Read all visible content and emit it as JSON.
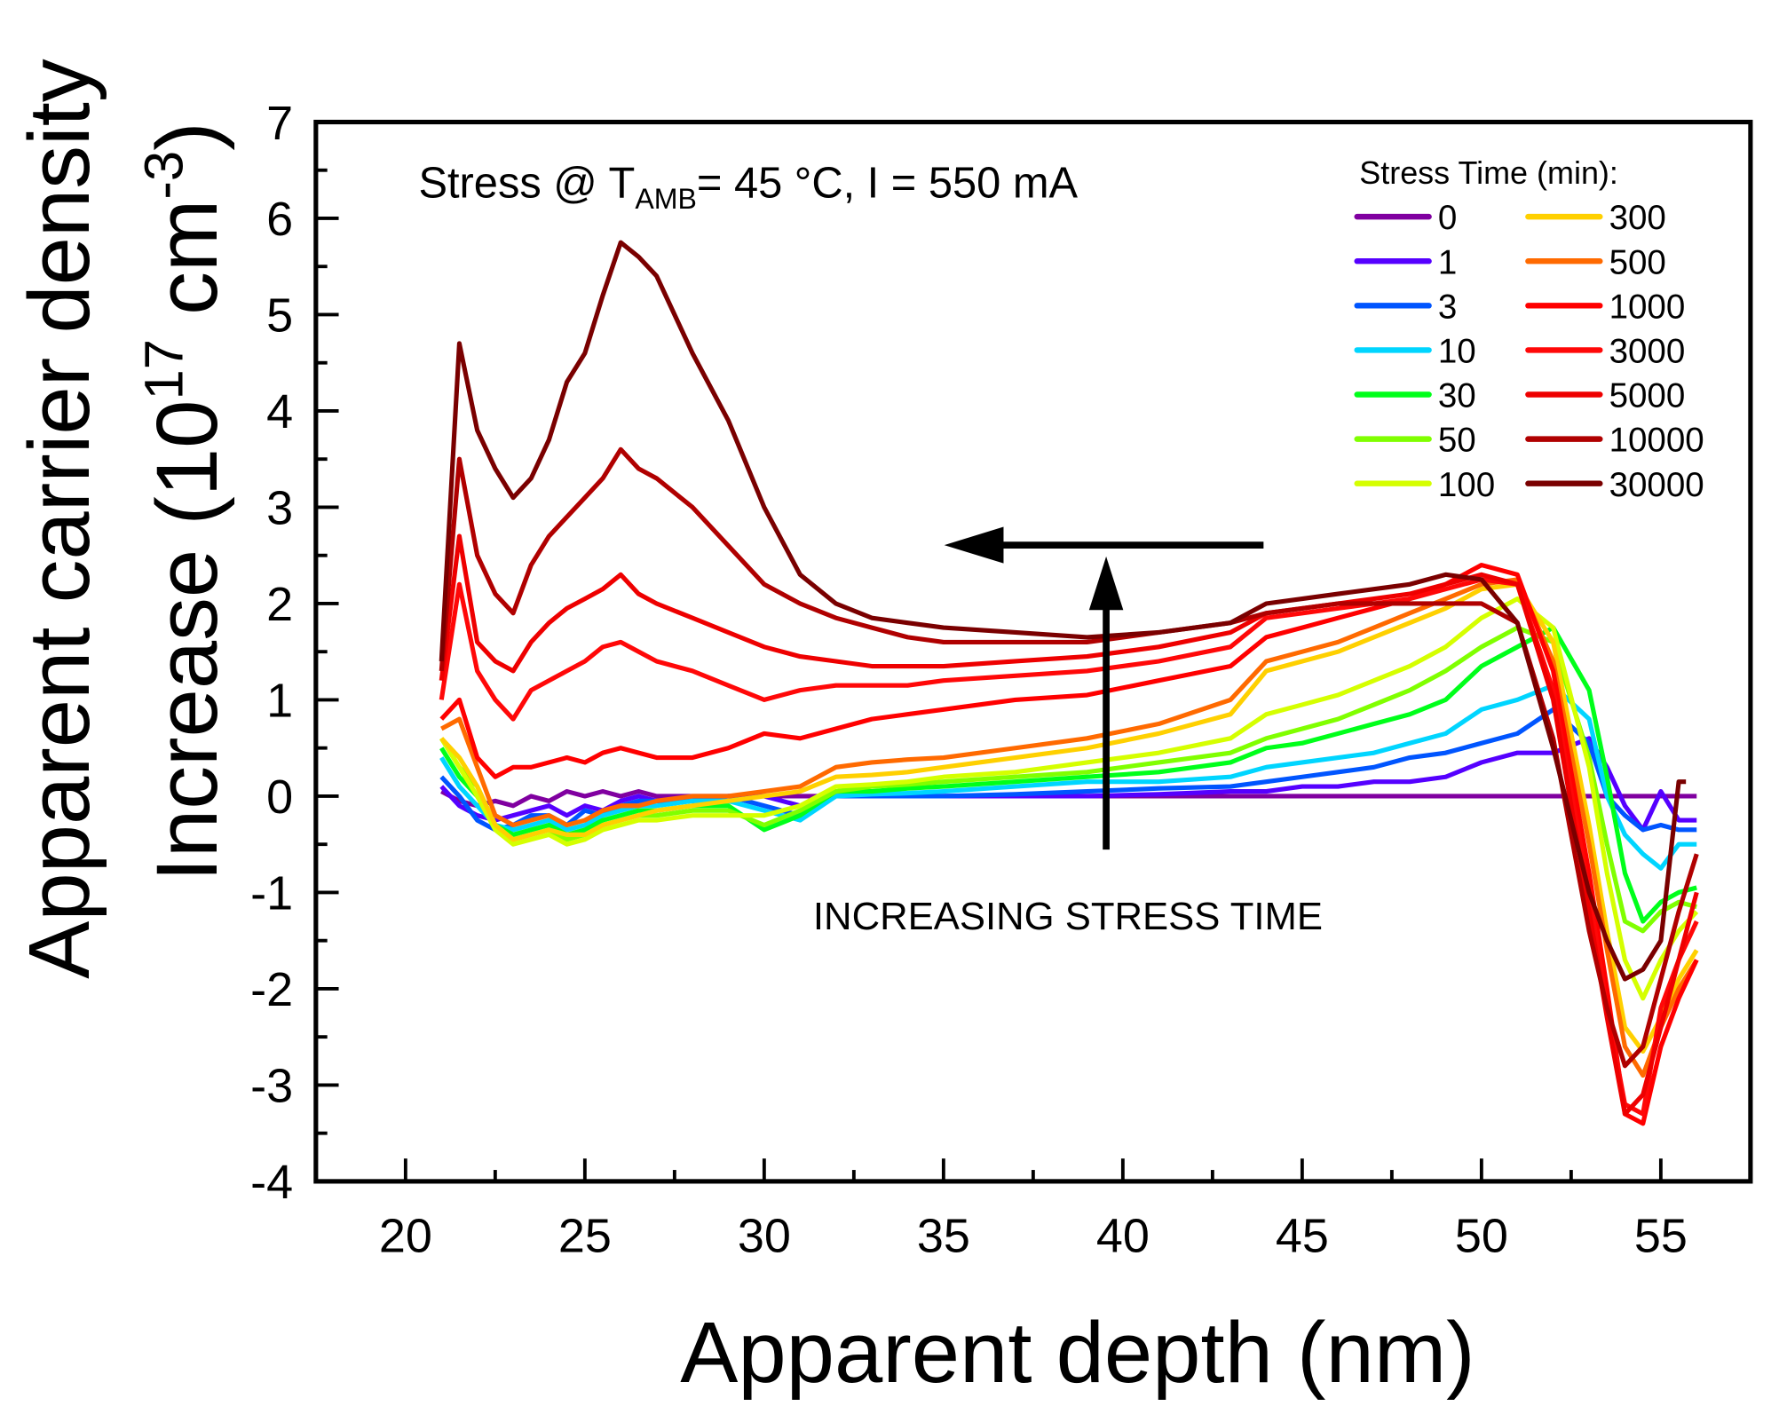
{
  "chart_data": {
    "type": "line",
    "title": "",
    "annotation": {
      "prefix": "Stress @ T",
      "sub": "AMB",
      "suffix": "= 45 °C, I = 550 mA"
    },
    "arrow_label": "INCREASING STRESS TIME",
    "xlabel": "Apparent depth (nm)",
    "ylabel_line1": "Apparent carrier density",
    "ylabel_line2": {
      "prefix": "Increase (10",
      "sup1": "17",
      "mid": " cm",
      "sup2": "-3",
      "suffix": ")"
    },
    "xlim": [
      17.5,
      57.5
    ],
    "ylim": [
      -4,
      7
    ],
    "xticks": [
      "20",
      "25",
      "30",
      "35",
      "40",
      "45",
      "50",
      "55"
    ],
    "yticks": [
      "-4",
      "-3",
      "-2",
      "-1",
      "0",
      "1",
      "2",
      "3",
      "4",
      "5",
      "6",
      "7"
    ],
    "legend_title": "Stress Time (min):",
    "legend_position": "top-right",
    "x": [
      21,
      21.5,
      22,
      22.5,
      23,
      23.5,
      24,
      24.5,
      25,
      25.5,
      26,
      26.5,
      27,
      28,
      29,
      30,
      31,
      32,
      33,
      34,
      35,
      37,
      39,
      41,
      43,
      44,
      45,
      46,
      47,
      48,
      49,
      50,
      51,
      52,
      53,
      53.5,
      54,
      54.5,
      55,
      55.5,
      56
    ],
    "series": [
      {
        "name": "0",
        "color": "#8000a0",
        "values": [
          0.05,
          -0.05,
          -0.1,
          -0.05,
          -0.1,
          0,
          -0.05,
          0.05,
          0,
          0.05,
          0,
          0.05,
          0,
          0,
          0,
          0,
          0,
          0,
          0,
          0,
          0,
          0,
          0,
          0,
          0,
          0,
          0,
          0,
          0,
          0,
          0,
          0,
          0,
          0,
          0,
          0,
          0,
          0,
          0,
          0,
          0
        ]
      },
      {
        "name": "1",
        "color": "#5500ff",
        "values": [
          0.1,
          -0.1,
          -0.2,
          -0.25,
          -0.2,
          -0.15,
          -0.1,
          -0.2,
          -0.1,
          -0.15,
          -0.05,
          0,
          -0.05,
          -0.05,
          0,
          0,
          -0.1,
          0,
          0,
          0,
          0,
          0,
          0,
          0.02,
          0.05,
          0.05,
          0.1,
          0.1,
          0.15,
          0.15,
          0.2,
          0.35,
          0.45,
          0.45,
          0.6,
          0.3,
          -0.1,
          -0.35,
          0.05,
          -0.25,
          -0.25
        ]
      },
      {
        "name": "3",
        "color": "#0055ff",
        "values": [
          0.2,
          0,
          -0.25,
          -0.35,
          -0.3,
          -0.2,
          -0.2,
          -0.3,
          -0.15,
          -0.2,
          -0.1,
          -0.05,
          -0.05,
          -0.05,
          0,
          -0.1,
          -0.2,
          0,
          0,
          0,
          0,
          0.02,
          0.05,
          0.08,
          0.1,
          0.15,
          0.2,
          0.25,
          0.3,
          0.4,
          0.45,
          0.55,
          0.65,
          0.9,
          0.55,
          0,
          -0.2,
          -0.35,
          -0.3,
          -0.35,
          -0.35
        ]
      },
      {
        "name": "10",
        "color": "#00d5ff",
        "values": [
          0.4,
          0.1,
          -0.1,
          -0.3,
          -0.35,
          -0.3,
          -0.25,
          -0.35,
          -0.3,
          -0.2,
          -0.15,
          -0.1,
          -0.1,
          -0.05,
          -0.05,
          -0.15,
          -0.25,
          0,
          0.02,
          0.03,
          0.05,
          0.1,
          0.15,
          0.15,
          0.2,
          0.3,
          0.35,
          0.4,
          0.45,
          0.55,
          0.65,
          0.9,
          1.0,
          1.15,
          0.8,
          0,
          -0.4,
          -0.6,
          -0.75,
          -0.5,
          -0.5
        ]
      },
      {
        "name": "30",
        "color": "#00ff1a",
        "values": [
          0.5,
          0.2,
          0,
          -0.3,
          -0.4,
          -0.35,
          -0.3,
          -0.4,
          -0.35,
          -0.25,
          -0.2,
          -0.15,
          -0.15,
          -0.1,
          -0.1,
          -0.35,
          -0.2,
          0.05,
          0.05,
          0.08,
          0.1,
          0.15,
          0.2,
          0.25,
          0.35,
          0.5,
          0.55,
          0.65,
          0.75,
          0.85,
          1.0,
          1.35,
          1.55,
          1.75,
          1.1,
          0.2,
          -0.8,
          -1.3,
          -1.1,
          -1.0,
          -0.95
        ]
      },
      {
        "name": "50",
        "color": "#80ff00",
        "values": [
          0.6,
          0.3,
          0.1,
          -0.3,
          -0.45,
          -0.4,
          -0.35,
          -0.45,
          -0.4,
          -0.3,
          -0.25,
          -0.2,
          -0.2,
          -0.15,
          -0.15,
          -0.3,
          -0.15,
          0.05,
          0.1,
          0.12,
          0.15,
          0.2,
          0.25,
          0.35,
          0.45,
          0.6,
          0.7,
          0.8,
          0.95,
          1.1,
          1.3,
          1.55,
          1.75,
          1.6,
          0.4,
          -0.5,
          -1.3,
          -1.4,
          -1.2,
          -1.1,
          -1.15
        ]
      },
      {
        "name": "100",
        "color": "#d5ff00",
        "values": [
          0.6,
          0.3,
          0,
          -0.35,
          -0.5,
          -0.45,
          -0.4,
          -0.5,
          -0.45,
          -0.35,
          -0.3,
          -0.25,
          -0.25,
          -0.2,
          -0.2,
          -0.2,
          -0.1,
          0.1,
          0.12,
          0.15,
          0.2,
          0.25,
          0.35,
          0.45,
          0.6,
          0.85,
          0.95,
          1.05,
          1.2,
          1.35,
          1.55,
          1.85,
          2.05,
          1.75,
          0.3,
          -0.8,
          -1.7,
          -2.1,
          -1.7,
          -1.4,
          -1.2
        ]
      },
      {
        "name": "300",
        "color": "#ffd000",
        "values": [
          0.6,
          0.4,
          0.1,
          -0.3,
          -0.45,
          -0.4,
          -0.35,
          -0.4,
          -0.4,
          -0.3,
          -0.25,
          -0.2,
          -0.15,
          -0.1,
          -0.05,
          0,
          0.05,
          0.2,
          0.22,
          0.25,
          0.3,
          0.4,
          0.5,
          0.65,
          0.85,
          1.3,
          1.4,
          1.5,
          1.65,
          1.8,
          1.95,
          2.15,
          2.2,
          1.6,
          -0.3,
          -1.4,
          -2.4,
          -2.65,
          -2.3,
          -1.9,
          -1.6
        ]
      },
      {
        "name": "500",
        "color": "#ff6a00",
        "values": [
          0.7,
          0.8,
          0.3,
          -0.2,
          -0.3,
          -0.25,
          -0.2,
          -0.3,
          -0.25,
          -0.15,
          -0.1,
          -0.1,
          -0.05,
          0,
          0,
          0.05,
          0.1,
          0.3,
          0.35,
          0.38,
          0.4,
          0.5,
          0.6,
          0.75,
          1.0,
          1.4,
          1.5,
          1.6,
          1.75,
          1.9,
          2.05,
          2.2,
          2.25,
          1.4,
          -0.5,
          -1.6,
          -2.6,
          -2.9,
          -2.4,
          -2.0,
          -1.7
        ]
      },
      {
        "name": "1000",
        "color": "#ff0000",
        "values": [
          0.8,
          1.0,
          0.4,
          0.2,
          0.3,
          0.3,
          0.35,
          0.4,
          0.35,
          0.45,
          0.5,
          0.45,
          0.4,
          0.4,
          0.5,
          0.65,
          0.6,
          0.7,
          0.8,
          0.85,
          0.9,
          1.0,
          1.05,
          1.2,
          1.35,
          1.65,
          1.75,
          1.85,
          1.95,
          2.05,
          2.2,
          2.4,
          2.3,
          1.3,
          -0.8,
          -2.0,
          -3.3,
          -3.4,
          -2.6,
          -2.1,
          -1.7
        ]
      },
      {
        "name": "3000",
        "color": "#ff0808",
        "values": [
          1.0,
          2.2,
          1.3,
          1.0,
          0.8,
          1.1,
          1.2,
          1.3,
          1.4,
          1.55,
          1.6,
          1.5,
          1.4,
          1.3,
          1.15,
          1.0,
          1.1,
          1.15,
          1.15,
          1.15,
          1.2,
          1.25,
          1.3,
          1.4,
          1.55,
          1.85,
          1.9,
          1.95,
          2.0,
          2.05,
          2.15,
          2.25,
          2.2,
          1.1,
          -1.0,
          -2.2,
          -3.2,
          -3.3,
          -2.2,
          -1.7,
          -1.3
        ]
      },
      {
        "name": "5000",
        "color": "#ee0000",
        "values": [
          1.2,
          2.7,
          1.6,
          1.4,
          1.3,
          1.6,
          1.8,
          1.95,
          2.05,
          2.15,
          2.3,
          2.1,
          2.0,
          1.85,
          1.7,
          1.55,
          1.45,
          1.4,
          1.35,
          1.35,
          1.35,
          1.4,
          1.45,
          1.55,
          1.7,
          1.9,
          1.95,
          2.0,
          2.05,
          2.1,
          2.2,
          2.3,
          2.2,
          1.0,
          -1.2,
          -2.3,
          -3.3,
          -3.1,
          -2.4,
          -1.7,
          -1.0
        ]
      },
      {
        "name": "10000",
        "color": "#b00000",
        "values": [
          1.3,
          3.5,
          2.5,
          2.1,
          1.9,
          2.4,
          2.7,
          2.9,
          3.1,
          3.3,
          3.6,
          3.4,
          3.3,
          3.0,
          2.6,
          2.2,
          2.0,
          1.85,
          1.75,
          1.65,
          1.6,
          1.6,
          1.6,
          1.7,
          1.8,
          1.9,
          1.95,
          2.0,
          2.0,
          2.0,
          2.0,
          2.0,
          1.8,
          0.6,
          -1.4,
          -2.2,
          -2.8,
          -2.6,
          -1.9,
          -1.2,
          -0.6
        ]
      },
      {
        "name": "30000",
        "color": "#7a0000",
        "values": [
          1.4,
          4.7,
          3.8,
          3.4,
          3.1,
          3.3,
          3.7,
          4.3,
          4.6,
          5.2,
          5.75,
          5.6,
          5.4,
          4.6,
          3.9,
          3.0,
          2.3,
          2.0,
          1.85,
          1.8,
          1.75,
          1.7,
          1.65,
          1.7,
          1.8,
          2.0,
          2.05,
          2.1,
          2.15,
          2.2,
          2.3,
          2.25,
          1.8,
          0.5,
          -1.0,
          -1.5,
          -1.9,
          -1.8,
          -1.5,
          0.15,
          null
        ]
      }
    ]
  }
}
